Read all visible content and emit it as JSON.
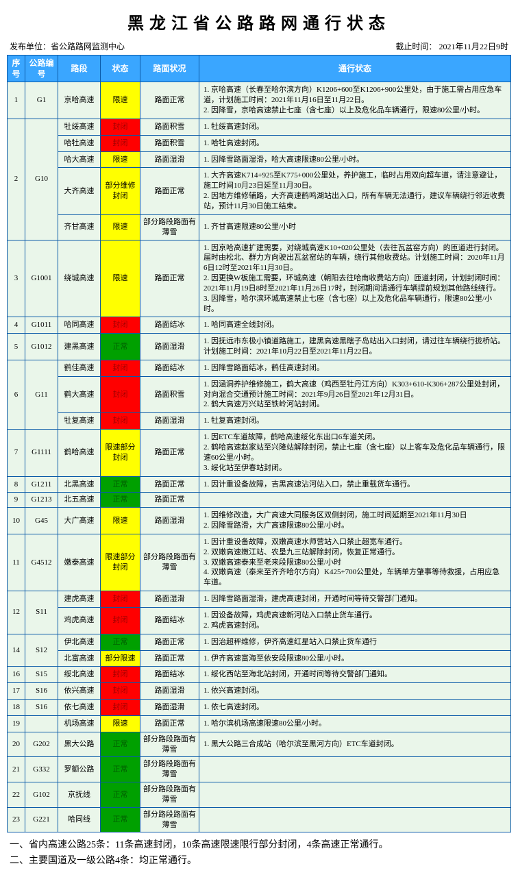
{
  "title": "黑龙江省公路路网通行状态",
  "meta": {
    "publisher_label": "发布单位：省公路路网监测中心",
    "time_label": "截止时间：",
    "time_value": "2021年11月22日9时"
  },
  "columns": [
    "序号",
    "公路编号",
    "路段",
    "状态",
    "路面状况",
    "通行状态"
  ],
  "status_style": {
    "限速": {
      "bg": "#ffff00",
      "fg": "#000000"
    },
    "封闭": {
      "bg": "#ff0000",
      "fg": "#a00000"
    },
    "正常": {
      "bg": "#00a000",
      "fg": "#006000"
    },
    "部分维修封闭": {
      "bg": "#ffff00",
      "fg": "#000000"
    },
    "限速部分封闭": {
      "bg": "#ffff00",
      "fg": "#000000"
    },
    "部分限速": {
      "bg": "#ffff00",
      "fg": "#000000"
    }
  },
  "groups": [
    {
      "idx": "1",
      "code": "G1",
      "rows": [
        {
          "seg": "京哈高速",
          "status": "限速",
          "road": "路面正常",
          "desc": "1. 京哈高速（长春至哈尔滨方向）K1206+600至K1206+900公里处，由于施工需占用应急车道，计划施工时间：2021年11月16日至11月22日。\n2. 因降雪，京哈高速禁止七座（含七座）以上及危化品车辆通行，限速80公里/小时。"
        }
      ]
    },
    {
      "idx": "2",
      "code": "G10",
      "rows": [
        {
          "seg": "牡绥高速",
          "status": "封闭",
          "road": "路面积雪",
          "desc": "1. 牡绥高速封闭。"
        },
        {
          "seg": "哈牡高速",
          "status": "封闭",
          "road": "路面积雪",
          "desc": "1. 哈牡高速封闭。"
        },
        {
          "seg": "哈大高速",
          "status": "限速",
          "road": "路面湿滑",
          "desc": "1. 因降雪路面湿滑，哈大高速限速80公里/小时。"
        },
        {
          "seg": "大齐高速",
          "status": "部分维修封闭",
          "road": "路面正常",
          "desc": "1. 大齐高速K714+925至K775+000公里处，养护施工，临时占用双向超车道，请注意避让，施工时间10月23日延至11月30日。\n2. 因地方维修辅路，大齐高速鹤鸣湖站出入口，所有车辆无法通行，建议车辆绕行邻近收费站，预计11月30日施工结束。"
        },
        {
          "seg": "齐甘高速",
          "status": "限速",
          "road": "部分路段路面有薄雪",
          "desc": "1. 齐甘高速限速80公里/小时"
        }
      ]
    },
    {
      "idx": "3",
      "code": "G1001",
      "rows": [
        {
          "seg": "绕城高速",
          "status": "限速",
          "road": "路面正常",
          "desc": "1. 因京哈高速扩建需要，对绕城高速K10+020公里处（去往瓦盆窑方向）的匝道进行封闭。届时由松北、群力方向驶出瓦盆窑站的车辆，绕行其他收费站。计划施工时间：2020年11月6日12时至2021年11月30日。\n2. 因更换W板施工需要，环城高速（朝阳去往哈南收费站方向）匝道封闭，计划封闭时间：2021年11月19日8时至2021年11月26日17时，封闭期间请通行车辆提前规划其他路线绕行。\n3. 因降雪，哈尔滨环城高速禁止七座（含七座）以上及危化品车辆通行，限速80公里/小时。"
        }
      ]
    },
    {
      "idx": "4",
      "code": "G1011",
      "rows": [
        {
          "seg": "哈同高速",
          "status": "封闭",
          "road": "路面结冰",
          "desc": "1. 哈同高速全线封闭。"
        }
      ]
    },
    {
      "idx": "5",
      "code": "G1012",
      "rows": [
        {
          "seg": "建黑高速",
          "status": "正常",
          "road": "路面湿滑",
          "desc": "1. 因抚远市东极小镇道路施工，建黑高速黑瞎子岛站出入口封闭，请过往车辆绕行拢桥站。计划施工时间：2021年10月22日至2021年11月22日。"
        }
      ]
    },
    {
      "idx": "6",
      "code": "G11",
      "rows": [
        {
          "seg": "鹤佳高速",
          "status": "封闭",
          "road": "路面结冰",
          "desc": "1. 因降雪路面结冰，鹤佳高速封闭。"
        },
        {
          "seg": "鹤大高速",
          "status": "封闭",
          "road": "路面积雪",
          "desc": "1. 因涵洞养护维修施工，鹤大高速（鸡西至牡丹江方向）K303+610-K306+287公里处封闭，对向混合交通预计施工时间：2021年9月26日至2021年12月31日。\n2. 鹤大高速万兴站至铁岭河站封闭。"
        },
        {
          "seg": "牡复高速",
          "status": "封闭",
          "road": "路面湿滑",
          "desc": "1. 牡复高速封闭。"
        }
      ]
    },
    {
      "idx": "7",
      "code": "G1111",
      "rows": [
        {
          "seg": "鹤哈高速",
          "status": "限速部分封闭",
          "road": "路面正常",
          "desc": "1. 因ETC车道故障，鹤哈高速绥化东出口6车道关闭。\n2. 鹤哈高速赵家站至兴隆站解除封闭，禁止七座（含七座）以上客车及危化品车辆通行，限速60公里/小时。\n3. 绥化站至伊春站封闭。"
        }
      ]
    },
    {
      "idx": "8",
      "code": "G1211",
      "rows": [
        {
          "seg": "北黑高速",
          "status": "正常",
          "road": "路面正常",
          "desc": "1. 因计重设备故障，吉黑高速沾河站入口，禁止重载货车通行。"
        }
      ]
    },
    {
      "idx": "9",
      "code": "G1213",
      "rows": [
        {
          "seg": "北五高速",
          "status": "正常",
          "road": "路面正常",
          "desc": ""
        }
      ]
    },
    {
      "idx": "10",
      "code": "G45",
      "rows": [
        {
          "seg": "大广高速",
          "status": "限速",
          "road": "路面湿滑",
          "desc": "1. 因维修改造，大广高速大同服务区双侧封闭，施工时间延期至2021年11月30日\n2. 因降雪路滑，大广高速限速80公里/小时。"
        }
      ]
    },
    {
      "idx": "11",
      "code": "G4512",
      "rows": [
        {
          "seg": "嫩泰高速",
          "status": "限速部分封闭",
          "road": "部分路段路面有薄雪",
          "desc": "1. 因计重设备故障，双嫩高速水师营站入口禁止超宽车通行。\n2. 双嫩高速嫩江站、农垦九三站解除封闭，恢复正常通行。\n3. 双嫩高速泰来至老来段限速80公里/小时\n4. 双嫩高速（泰来至齐齐哈尔方向）K425+700公里处，车辆单方肇事等待救援，占用应急车道。"
        }
      ]
    },
    {
      "idx": "12",
      "code": "S11",
      "rows": [
        {
          "seg": "建虎高速",
          "status": "封闭",
          "road": "路面湿滑",
          "desc": "1. 因降雪路面湿滑，建虎高速封闭，开通时间等待交警部门通知。"
        },
        {
          "seg": "鸡虎高速",
          "status": "封闭",
          "road": "路面结冰",
          "desc": "1. 因设备故障，鸡虎高速新河站入口禁止货车通行。\n2. 鸡虎高速封闭。"
        }
      ]
    },
    {
      "idx": "14",
      "code": "S12",
      "rows": [
        {
          "seg": "伊北高速",
          "status": "正常",
          "road": "路面正常",
          "desc": "1. 因治超秤维修，伊齐高速红星站入口禁止货车通行"
        },
        {
          "seg": "北富高速",
          "status": "部分限速",
          "road": "路面正常",
          "desc": "1. 伊齐高速富海至依安段限速80公里/小时。"
        }
      ]
    },
    {
      "idx": "16",
      "code": "S15",
      "rows": [
        {
          "seg": "绥北高速",
          "status": "封闭",
          "road": "路面结冰",
          "desc": "1. 绥化西站至海北站封闭，开通时间等待交警部门通知。"
        }
      ]
    },
    {
      "idx": "17",
      "code": "S16",
      "rows": [
        {
          "seg": "依兴高速",
          "status": "封闭",
          "road": "路面湿滑",
          "desc": "1. 依兴高速封闭。"
        }
      ]
    },
    {
      "idx": "18",
      "code": "S16",
      "rows": [
        {
          "seg": "依七高速",
          "status": "封闭",
          "road": "路面湿滑",
          "desc": "1. 依七高速封闭。"
        }
      ]
    },
    {
      "idx": "19",
      "code": "",
      "rows": [
        {
          "seg": "机场高速",
          "status": "限速",
          "road": "路面正常",
          "desc": "1. 哈尔滨机场高速限速80公里/小时。"
        }
      ]
    },
    {
      "idx": "20",
      "code": "G202",
      "rows": [
        {
          "seg": "黑大公路",
          "status": "正常",
          "road": "部分路段路面有薄雪",
          "desc": "1. 黑大公路三合成站（哈尔滨至黑河方向）ETC车道封闭。"
        }
      ]
    },
    {
      "idx": "21",
      "code": "G332",
      "rows": [
        {
          "seg": "罗额公路",
          "status": "正常",
          "road": "部分路段路面有薄雪",
          "desc": ""
        }
      ]
    },
    {
      "idx": "22",
      "code": "G102",
      "rows": [
        {
          "seg": "京抚线",
          "status": "正常",
          "road": "部分路段路面有薄雪",
          "desc": ""
        }
      ]
    },
    {
      "idx": "23",
      "code": "G221",
      "rows": [
        {
          "seg": "哈同线",
          "status": "正常",
          "road": "部分路段路面有薄雪",
          "desc": ""
        }
      ]
    }
  ],
  "footer": [
    "一、省内高速公路25条：11条高速封闭，10条高速限速限行部分封闭，4条高速正常通行。",
    "二、主要国道及一级公路4条：均正常通行。"
  ]
}
